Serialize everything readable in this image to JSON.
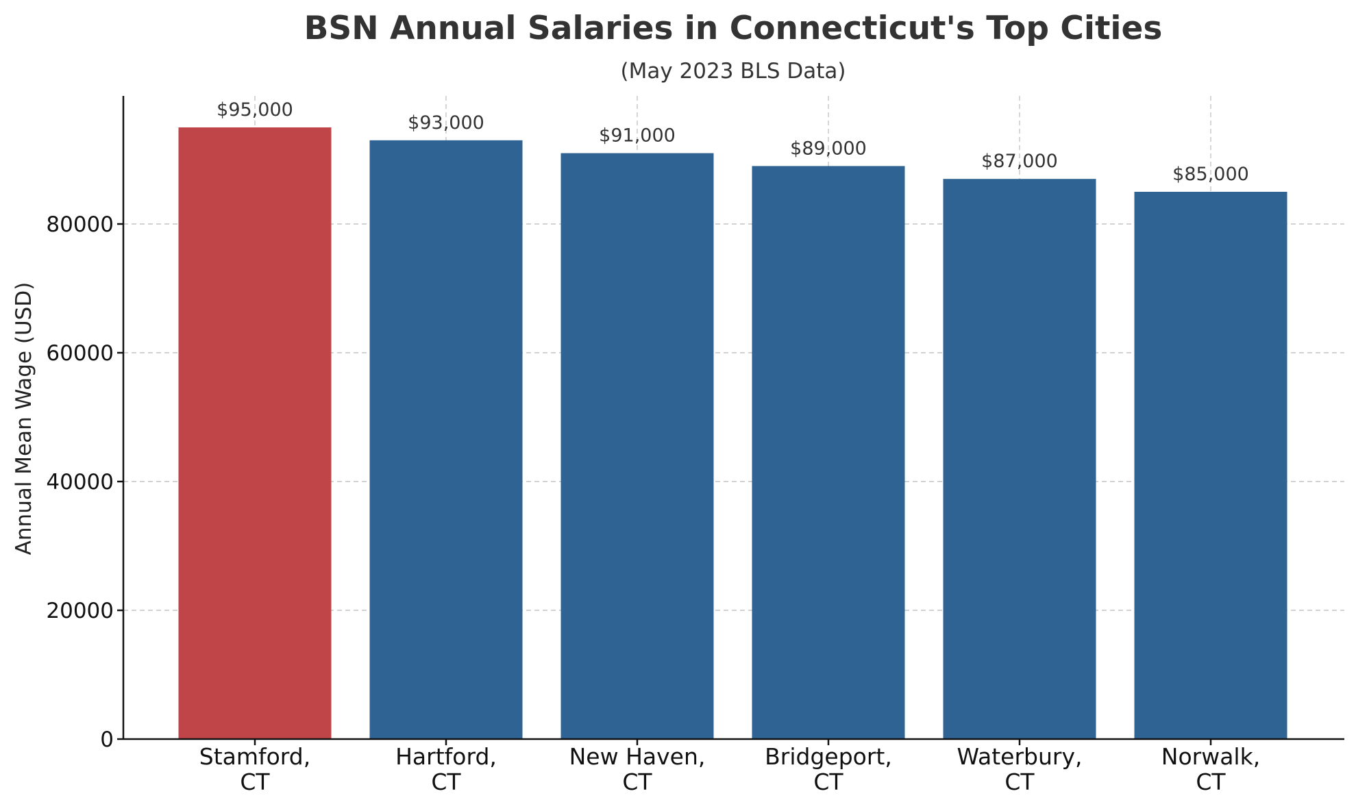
{
  "chart_data": {
    "type": "bar",
    "title": "BSN Annual Salaries in Connecticut's Top Cities",
    "subtitle": "(May 2023 BLS Data)",
    "xlabel": "",
    "ylabel": "Annual Mean Wage (USD)",
    "categories": [
      "Stamford, CT",
      "Hartford, CT",
      "New Haven, CT",
      "Bridgeport, CT",
      "Waterbury, CT",
      "Norwalk, CT"
    ],
    "category_lines": [
      [
        "Stamford,",
        "CT"
      ],
      [
        "Hartford,",
        "CT"
      ],
      [
        "New Haven,",
        "CT"
      ],
      [
        "Bridgeport,",
        "CT"
      ],
      [
        "Waterbury,",
        "CT"
      ],
      [
        "Norwalk,",
        "CT"
      ]
    ],
    "values": [
      95000,
      93000,
      91000,
      89000,
      87000,
      85000
    ],
    "data_labels": [
      "$95,000",
      "$93,000",
      "$91,000",
      "$89,000",
      "$87,000",
      "$85,000"
    ],
    "yticks": [
      0,
      20000,
      40000,
      60000,
      80000
    ],
    "ytick_labels": [
      "0",
      "20000",
      "40000",
      "60000",
      "80000"
    ],
    "ylim": [
      0,
      100000
    ],
    "grid": true,
    "colors": {
      "highlight": "#bf4549",
      "default": "#2f6393"
    },
    "highlight_index": 0
  }
}
